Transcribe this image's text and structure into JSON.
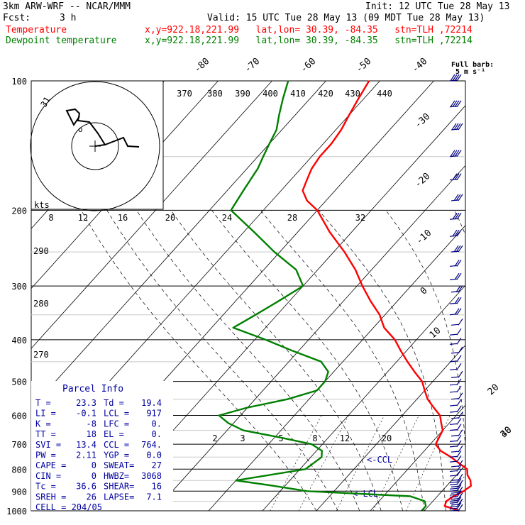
{
  "header": {
    "model": "3km ARW-WRF -- NCAR/MMM",
    "init": "Init: 12 UTC Tue 28 May 13",
    "fcst_label": "Fcst:",
    "fcst_value": "3 h",
    "valid": "Valid: 15 UTC Tue 28 May 13 (09 MDT Tue 28 May 13)",
    "temp_name": "Temperature",
    "dew_name": "Dewpoint temperature",
    "loc_info": "x,y=922.18,221.99   lat,lon= 30.39, -84.35   stn=TLH ,72214"
  },
  "colors": {
    "temperature": "#ff0000",
    "dewpoint": "#008000",
    "wind": "#000080",
    "parcel": "#0000a0"
  },
  "barb_key": {
    "title": "Full barb:",
    "value": "5 m s⁻¹"
  },
  "hodograph": {
    "units_label": "kts",
    "ring_label": "31",
    "speed_ticks": [
      "8",
      "12",
      "16",
      "20",
      "24",
      "28",
      "32"
    ]
  },
  "parcel_info": {
    "title": "Parcel Info",
    "rows": [
      [
        "T  =",
        "23.3",
        "Td =",
        "19.4"
      ],
      [
        "LI =",
        "-0.1",
        "LCL =",
        "917"
      ],
      [
        "K  =",
        "-8",
        "LFC =",
        "0."
      ],
      [
        "TT =",
        "18",
        "EL  =",
        "0."
      ],
      [
        "SVI =",
        "13.4",
        "CCL =",
        "764."
      ],
      [
        "PW  =",
        "2.11",
        "YGP =",
        "0.0"
      ],
      [
        "CAPE =",
        "0",
        "SWEAT=",
        "27"
      ],
      [
        "CIN  =",
        "0",
        "HWBZ=",
        "3068"
      ],
      [
        "Tc  =",
        "36.6",
        "SHEAR=",
        "16"
      ],
      [
        "SREH =",
        "26",
        "LAPSE=",
        "7.1"
      ],
      [
        "CELL = 204/05",
        "",
        "",
        ""
      ]
    ]
  },
  "markers": {
    "ccl": "<-CCL",
    "lcl": "<-LCL"
  },
  "chart_data": {
    "type": "line",
    "yscale": "log",
    "ylabel": "",
    "xlabel": "",
    "pressure_levels": [
      100,
      200,
      300,
      400,
      500,
      600,
      700,
      800,
      900,
      1000
    ],
    "temperature_tick_labels": [
      "-80",
      "-70",
      "-60",
      "-50",
      "-40",
      "-30",
      "-20",
      "-10",
      "0",
      "10",
      "20",
      "30",
      "40"
    ],
    "theta_labels": [
      "370",
      "380",
      "390",
      "400",
      "410",
      "420",
      "430",
      "440"
    ],
    "theta_side_labels": [
      "290",
      "280",
      "270"
    ],
    "mixing_ratio_labels": [
      "2",
      "3",
      "5",
      "8",
      "12",
      "20"
    ],
    "series": [
      {
        "name": "Temperature",
        "color": "#ff0000",
        "points": [
          [
            1000,
            26.5
          ],
          [
            975,
            23
          ],
          [
            950,
            22.5
          ],
          [
            925,
            23
          ],
          [
            900,
            24
          ],
          [
            875,
            24.5
          ],
          [
            850,
            23.5
          ],
          [
            825,
            22
          ],
          [
            800,
            21
          ],
          [
            775,
            18.5
          ],
          [
            750,
            16
          ],
          [
            725,
            13
          ],
          [
            700,
            11
          ],
          [
            675,
            10.5
          ],
          [
            650,
            10
          ],
          [
            625,
            8.5
          ],
          [
            600,
            7
          ],
          [
            575,
            4.5
          ],
          [
            550,
            2
          ],
          [
            525,
            0
          ],
          [
            500,
            -2
          ],
          [
            475,
            -5
          ],
          [
            450,
            -8
          ],
          [
            425,
            -11
          ],
          [
            400,
            -14
          ],
          [
            375,
            -18
          ],
          [
            350,
            -21
          ],
          [
            325,
            -25
          ],
          [
            300,
            -29
          ],
          [
            275,
            -33
          ],
          [
            250,
            -38
          ],
          [
            225,
            -44
          ],
          [
            200,
            -50
          ],
          [
            190,
            -53.5
          ],
          [
            180,
            -56
          ],
          [
            170,
            -57
          ],
          [
            160,
            -58
          ],
          [
            150,
            -58.5
          ],
          [
            140,
            -58.5
          ],
          [
            130,
            -59
          ],
          [
            120,
            -60
          ],
          [
            110,
            -61
          ],
          [
            100,
            -62
          ]
        ]
      },
      {
        "name": "Dewpoint temperature",
        "color": "#008000",
        "points": [
          [
            1000,
            19.5
          ],
          [
            975,
            19.5
          ],
          [
            950,
            18.5
          ],
          [
            925,
            15
          ],
          [
            900,
            -5
          ],
          [
            875,
            -12
          ],
          [
            850,
            -20
          ],
          [
            800,
            -9
          ],
          [
            750,
            -8
          ],
          [
            725,
            -9
          ],
          [
            700,
            -12
          ],
          [
            675,
            -19
          ],
          [
            650,
            -27
          ],
          [
            625,
            -31
          ],
          [
            600,
            -34
          ],
          [
            575,
            -30
          ],
          [
            550,
            -24
          ],
          [
            525,
            -20
          ],
          [
            500,
            -20
          ],
          [
            475,
            -21
          ],
          [
            450,
            -24
          ],
          [
            425,
            -31
          ],
          [
            400,
            -38
          ],
          [
            375,
            -46
          ],
          [
            350,
            -44
          ],
          [
            325,
            -42
          ],
          [
            300,
            -40
          ],
          [
            275,
            -44
          ],
          [
            250,
            -51
          ],
          [
            225,
            -58
          ],
          [
            200,
            -66
          ],
          [
            180,
            -67
          ],
          [
            160,
            -68
          ],
          [
            150,
            -69
          ],
          [
            140,
            -70
          ],
          [
            130,
            -71
          ],
          [
            120,
            -73
          ],
          [
            110,
            -75
          ],
          [
            100,
            -77
          ]
        ]
      }
    ],
    "wind_profile": {
      "name": "Wind barbs",
      "units": "m s-1",
      "pressures": [
        1000,
        990,
        980,
        970,
        960,
        950,
        940,
        930,
        920,
        910,
        900,
        890,
        880,
        870,
        860,
        850,
        830,
        810,
        790,
        770,
        750,
        730,
        710,
        690,
        670,
        650,
        630,
        610,
        590,
        570,
        550,
        530,
        510,
        490,
        470,
        450,
        430,
        410,
        390,
        370,
        350,
        330,
        310,
        290,
        270,
        250,
        230,
        210,
        190,
        170,
        150,
        130,
        115,
        100
      ],
      "speeds_ms": [
        3,
        3,
        3,
        4,
        4,
        4,
        4,
        4,
        4,
        4,
        4,
        4,
        4,
        4,
        4,
        4,
        4,
        4,
        4,
        4,
        4,
        4,
        4,
        4,
        5,
        5,
        5,
        5,
        5,
        5,
        5,
        5,
        5,
        5,
        5,
        5,
        6,
        6,
        6,
        7,
        8,
        9,
        10,
        11,
        12,
        13,
        14,
        15,
        16,
        17,
        18,
        19,
        20,
        20
      ]
    }
  }
}
